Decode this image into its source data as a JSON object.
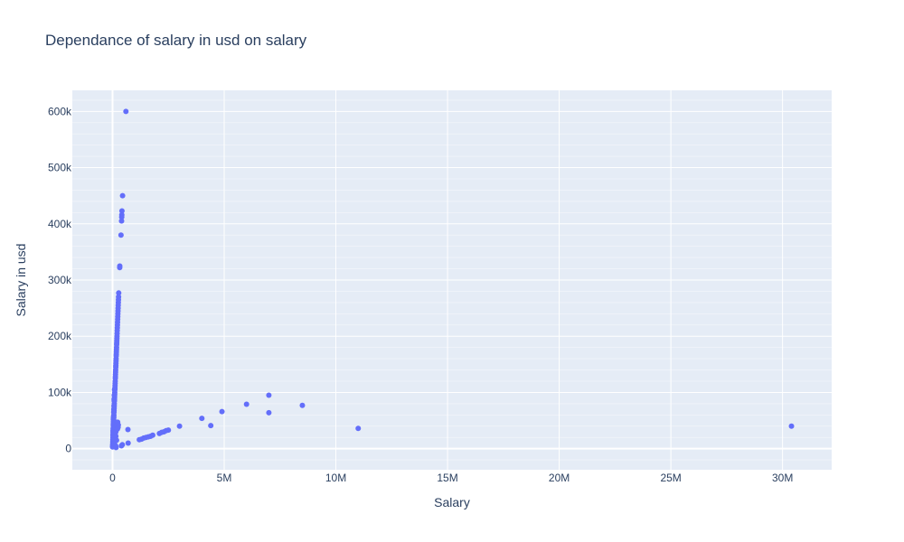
{
  "chart_data": {
    "type": "scatter",
    "title": "Dependance of salary in usd on salary",
    "xlabel": "Salary",
    "ylabel": "Salary in usd",
    "xlim": [
      -1800000,
      32200000
    ],
    "ylim": [
      -37500,
      637500
    ],
    "x_ticks": [
      {
        "value": 0,
        "label": "0"
      },
      {
        "value": 5000000,
        "label": "5M"
      },
      {
        "value": 10000000,
        "label": "10M"
      },
      {
        "value": 15000000,
        "label": "15M"
      },
      {
        "value": 20000000,
        "label": "20M"
      },
      {
        "value": 25000000,
        "label": "25M"
      },
      {
        "value": 30000000,
        "label": "30M"
      }
    ],
    "y_ticks": [
      {
        "value": 0,
        "label": "0"
      },
      {
        "value": 100000,
        "label": "100k"
      },
      {
        "value": 200000,
        "label": "200k"
      },
      {
        "value": 300000,
        "label": "300k"
      },
      {
        "value": 400000,
        "label": "400k"
      },
      {
        "value": 500000,
        "label": "500k"
      },
      {
        "value": 600000,
        "label": "600k"
      }
    ],
    "grid": true,
    "colors": {
      "marker": "#636efa",
      "plot_bg": "#e5ecf6",
      "grid": "#ffffff",
      "text": "#2a3f5f"
    },
    "points": [
      [
        600000,
        600000
      ],
      [
        450000,
        450000
      ],
      [
        423000,
        423000
      ],
      [
        416000,
        416000
      ],
      [
        412000,
        412000
      ],
      [
        405000,
        405000
      ],
      [
        380000,
        380000
      ],
      [
        325000,
        325000
      ],
      [
        322000,
        322000
      ],
      [
        277000,
        277000
      ],
      [
        270000,
        270000
      ],
      [
        265000,
        265000
      ],
      [
        260000,
        260000
      ],
      [
        255000,
        255000
      ],
      [
        250000,
        250000
      ],
      [
        245000,
        245000
      ],
      [
        240000,
        240000
      ],
      [
        235000,
        235000
      ],
      [
        230000,
        230000
      ],
      [
        225000,
        225000
      ],
      [
        220000,
        220000
      ],
      [
        215000,
        215000
      ],
      [
        210000,
        210000
      ],
      [
        205000,
        205000
      ],
      [
        200000,
        200000
      ],
      [
        196000,
        196000
      ],
      [
        192000,
        192000
      ],
      [
        188000,
        188000
      ],
      [
        185000,
        185000
      ],
      [
        180000,
        180000
      ],
      [
        176000,
        176000
      ],
      [
        172000,
        172000
      ],
      [
        168000,
        168000
      ],
      [
        165000,
        165000
      ],
      [
        160000,
        160000
      ],
      [
        156000,
        156000
      ],
      [
        152000,
        152000
      ],
      [
        148000,
        148000
      ],
      [
        145000,
        145000
      ],
      [
        140000,
        140000
      ],
      [
        136000,
        136000
      ],
      [
        132000,
        132000
      ],
      [
        128000,
        128000
      ],
      [
        125000,
        125000
      ],
      [
        120000,
        120000
      ],
      [
        116000,
        116000
      ],
      [
        112000,
        112000
      ],
      [
        108000,
        108000
      ],
      [
        105000,
        105000
      ],
      [
        100000,
        100000
      ],
      [
        96000,
        96000
      ],
      [
        92000,
        92000
      ],
      [
        88000,
        88000
      ],
      [
        85000,
        85000
      ],
      [
        80000,
        80000
      ],
      [
        76000,
        76000
      ],
      [
        72000,
        72000
      ],
      [
        68000,
        68000
      ],
      [
        65000,
        65000
      ],
      [
        60000,
        60000
      ],
      [
        56000,
        56000
      ],
      [
        52000,
        52000
      ],
      [
        48000,
        48000
      ],
      [
        45000,
        45000
      ],
      [
        40000,
        40000
      ],
      [
        36000,
        36000
      ],
      [
        32000,
        32000
      ],
      [
        28000,
        28000
      ],
      [
        25000,
        25000
      ],
      [
        20000,
        20000
      ],
      [
        16000,
        16000
      ],
      [
        12000,
        12000
      ],
      [
        8000,
        8000
      ],
      [
        5000,
        5000
      ],
      [
        3000,
        3000
      ],
      [
        40000,
        52000
      ],
      [
        45000,
        55000
      ],
      [
        35000,
        42000
      ],
      [
        60000,
        70000
      ],
      [
        80000,
        95000
      ],
      [
        30000,
        36000
      ],
      [
        50000,
        58000
      ],
      [
        25000,
        30000
      ],
      [
        20000,
        24000
      ],
      [
        70000,
        88000
      ],
      [
        55000,
        65000
      ],
      [
        90000,
        105000
      ],
      [
        42000,
        48000
      ],
      [
        38000,
        44000
      ],
      [
        65000,
        76000
      ],
      [
        48000,
        55000
      ],
      [
        28000,
        33000
      ],
      [
        75000,
        85000
      ],
      [
        100000,
        20000
      ],
      [
        120000,
        25000
      ],
      [
        150000,
        30000
      ],
      [
        180000,
        45000
      ],
      [
        200000,
        40000
      ],
      [
        220000,
        35000
      ],
      [
        250000,
        38000
      ],
      [
        180000,
        15000
      ],
      [
        150000,
        22000
      ],
      [
        100000,
        12000
      ],
      [
        80000,
        10000
      ],
      [
        60000,
        8000
      ],
      [
        230000,
        47000
      ],
      [
        260000,
        42000
      ],
      [
        140000,
        5000
      ],
      [
        160000,
        2000
      ],
      [
        400000,
        5000
      ],
      [
        440000,
        7000
      ],
      [
        690000,
        34000
      ],
      [
        700000,
        10000
      ],
      [
        1200000,
        16000
      ],
      [
        1300000,
        17000
      ],
      [
        1400000,
        19000
      ],
      [
        1500000,
        20000
      ],
      [
        1600000,
        21000
      ],
      [
        1700000,
        22000
      ],
      [
        1800000,
        24000
      ],
      [
        2100000,
        27000
      ],
      [
        2200000,
        29000
      ],
      [
        2300000,
        30000
      ],
      [
        2400000,
        32000
      ],
      [
        2500000,
        33000
      ],
      [
        3000000,
        40000
      ],
      [
        4000000,
        54000
      ],
      [
        4400000,
        41000
      ],
      [
        4900000,
        66000
      ],
      [
        6000000,
        79000
      ],
      [
        7000000,
        95000
      ],
      [
        7000000,
        64000
      ],
      [
        8500000,
        77000
      ],
      [
        11000000,
        36000
      ],
      [
        30400000,
        40000
      ]
    ]
  }
}
